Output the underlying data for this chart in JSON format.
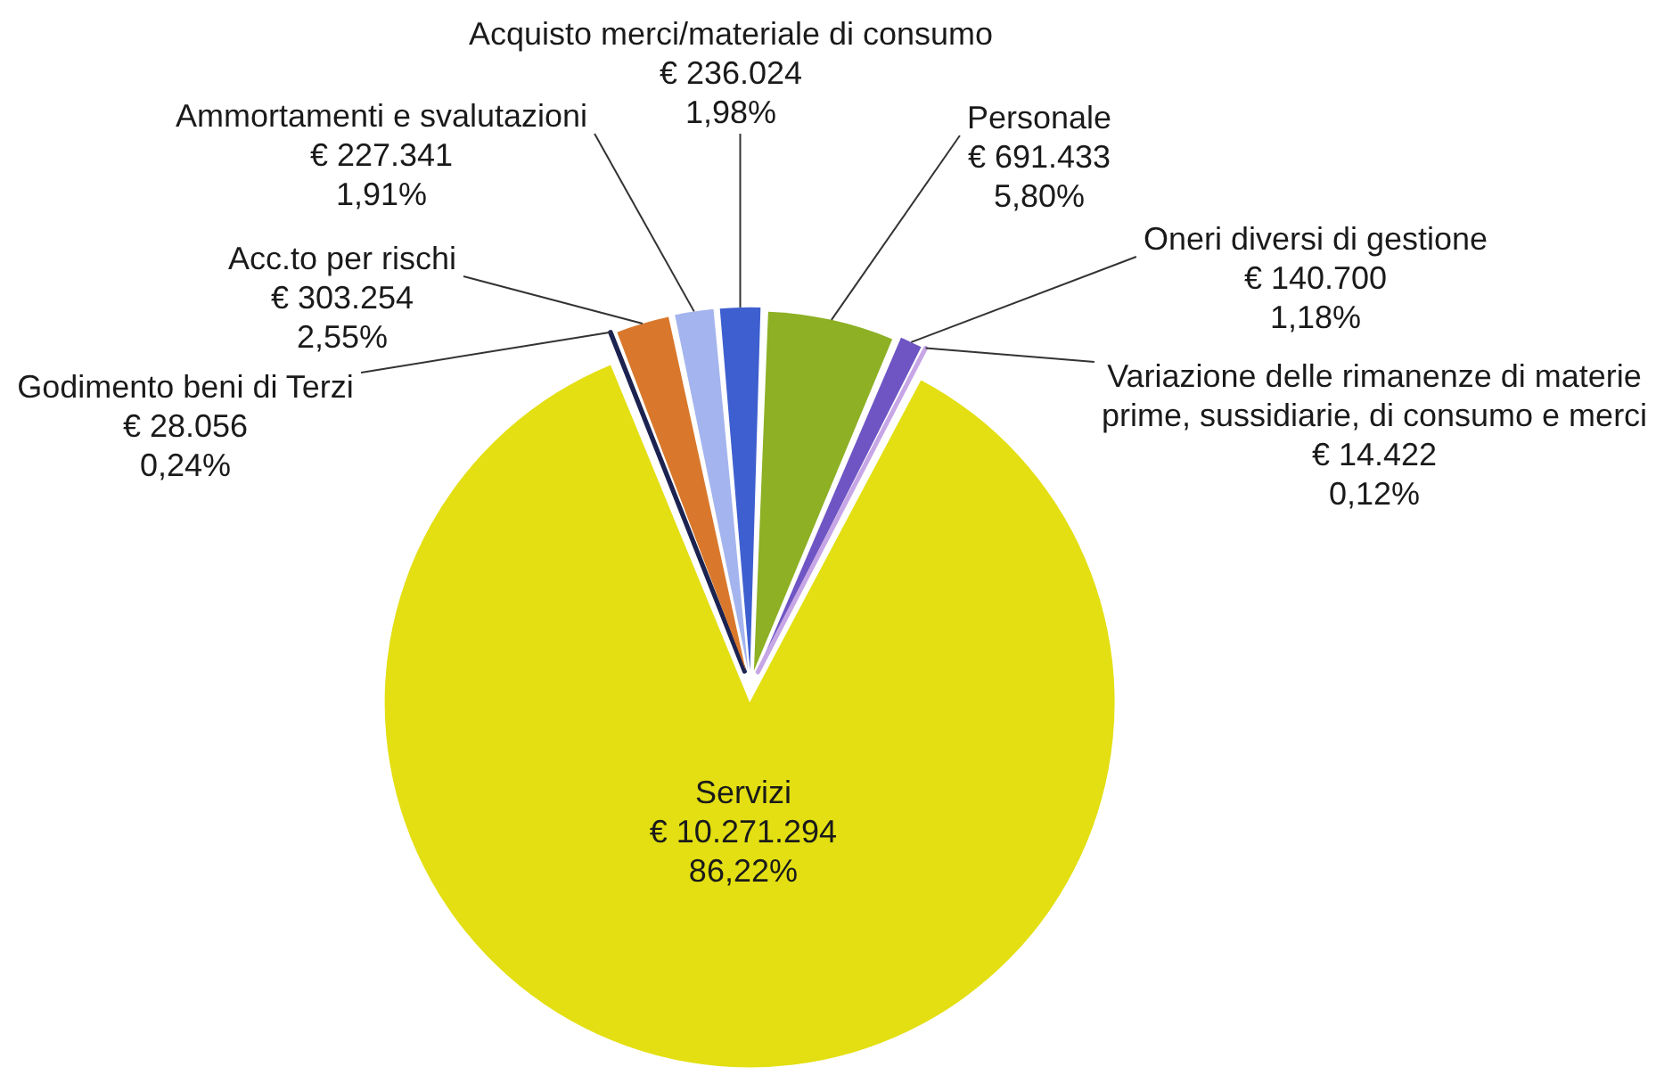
{
  "chart_data": {
    "type": "pie",
    "categories": [
      "Godimento beni di Terzi",
      "Acc.to per rischi",
      "Ammortamenti e svalutazioni",
      "Acquisto merci/materiale di consumo",
      "Personale",
      "Oneri diversi di gestione",
      "Variazione delle rimanenze di materie prime, sussidiarie, di consumo e merci",
      "Servizi"
    ],
    "values": [
      28056,
      303254,
      227341,
      236024,
      691433,
      140700,
      14422,
      10271294
    ],
    "colors": [
      "#1c2350",
      "#d9782c",
      "#a4b4ee",
      "#3e5fcf",
      "#8db024",
      "#6f55c4",
      "#c7a6e6",
      "#e3df12"
    ],
    "value_labels": [
      "€ 28.056\n0,24%",
      "€ 303.254\n2,55%",
      "€ 227.341\n1,91%",
      "€ 236.024\n1,98%",
      "€ 691.433\n5,80%",
      "€ 140.700\n1,18%",
      "€ 14.422\n0,12%",
      "€ 10.271.294\n86,22%"
    ]
  }
}
